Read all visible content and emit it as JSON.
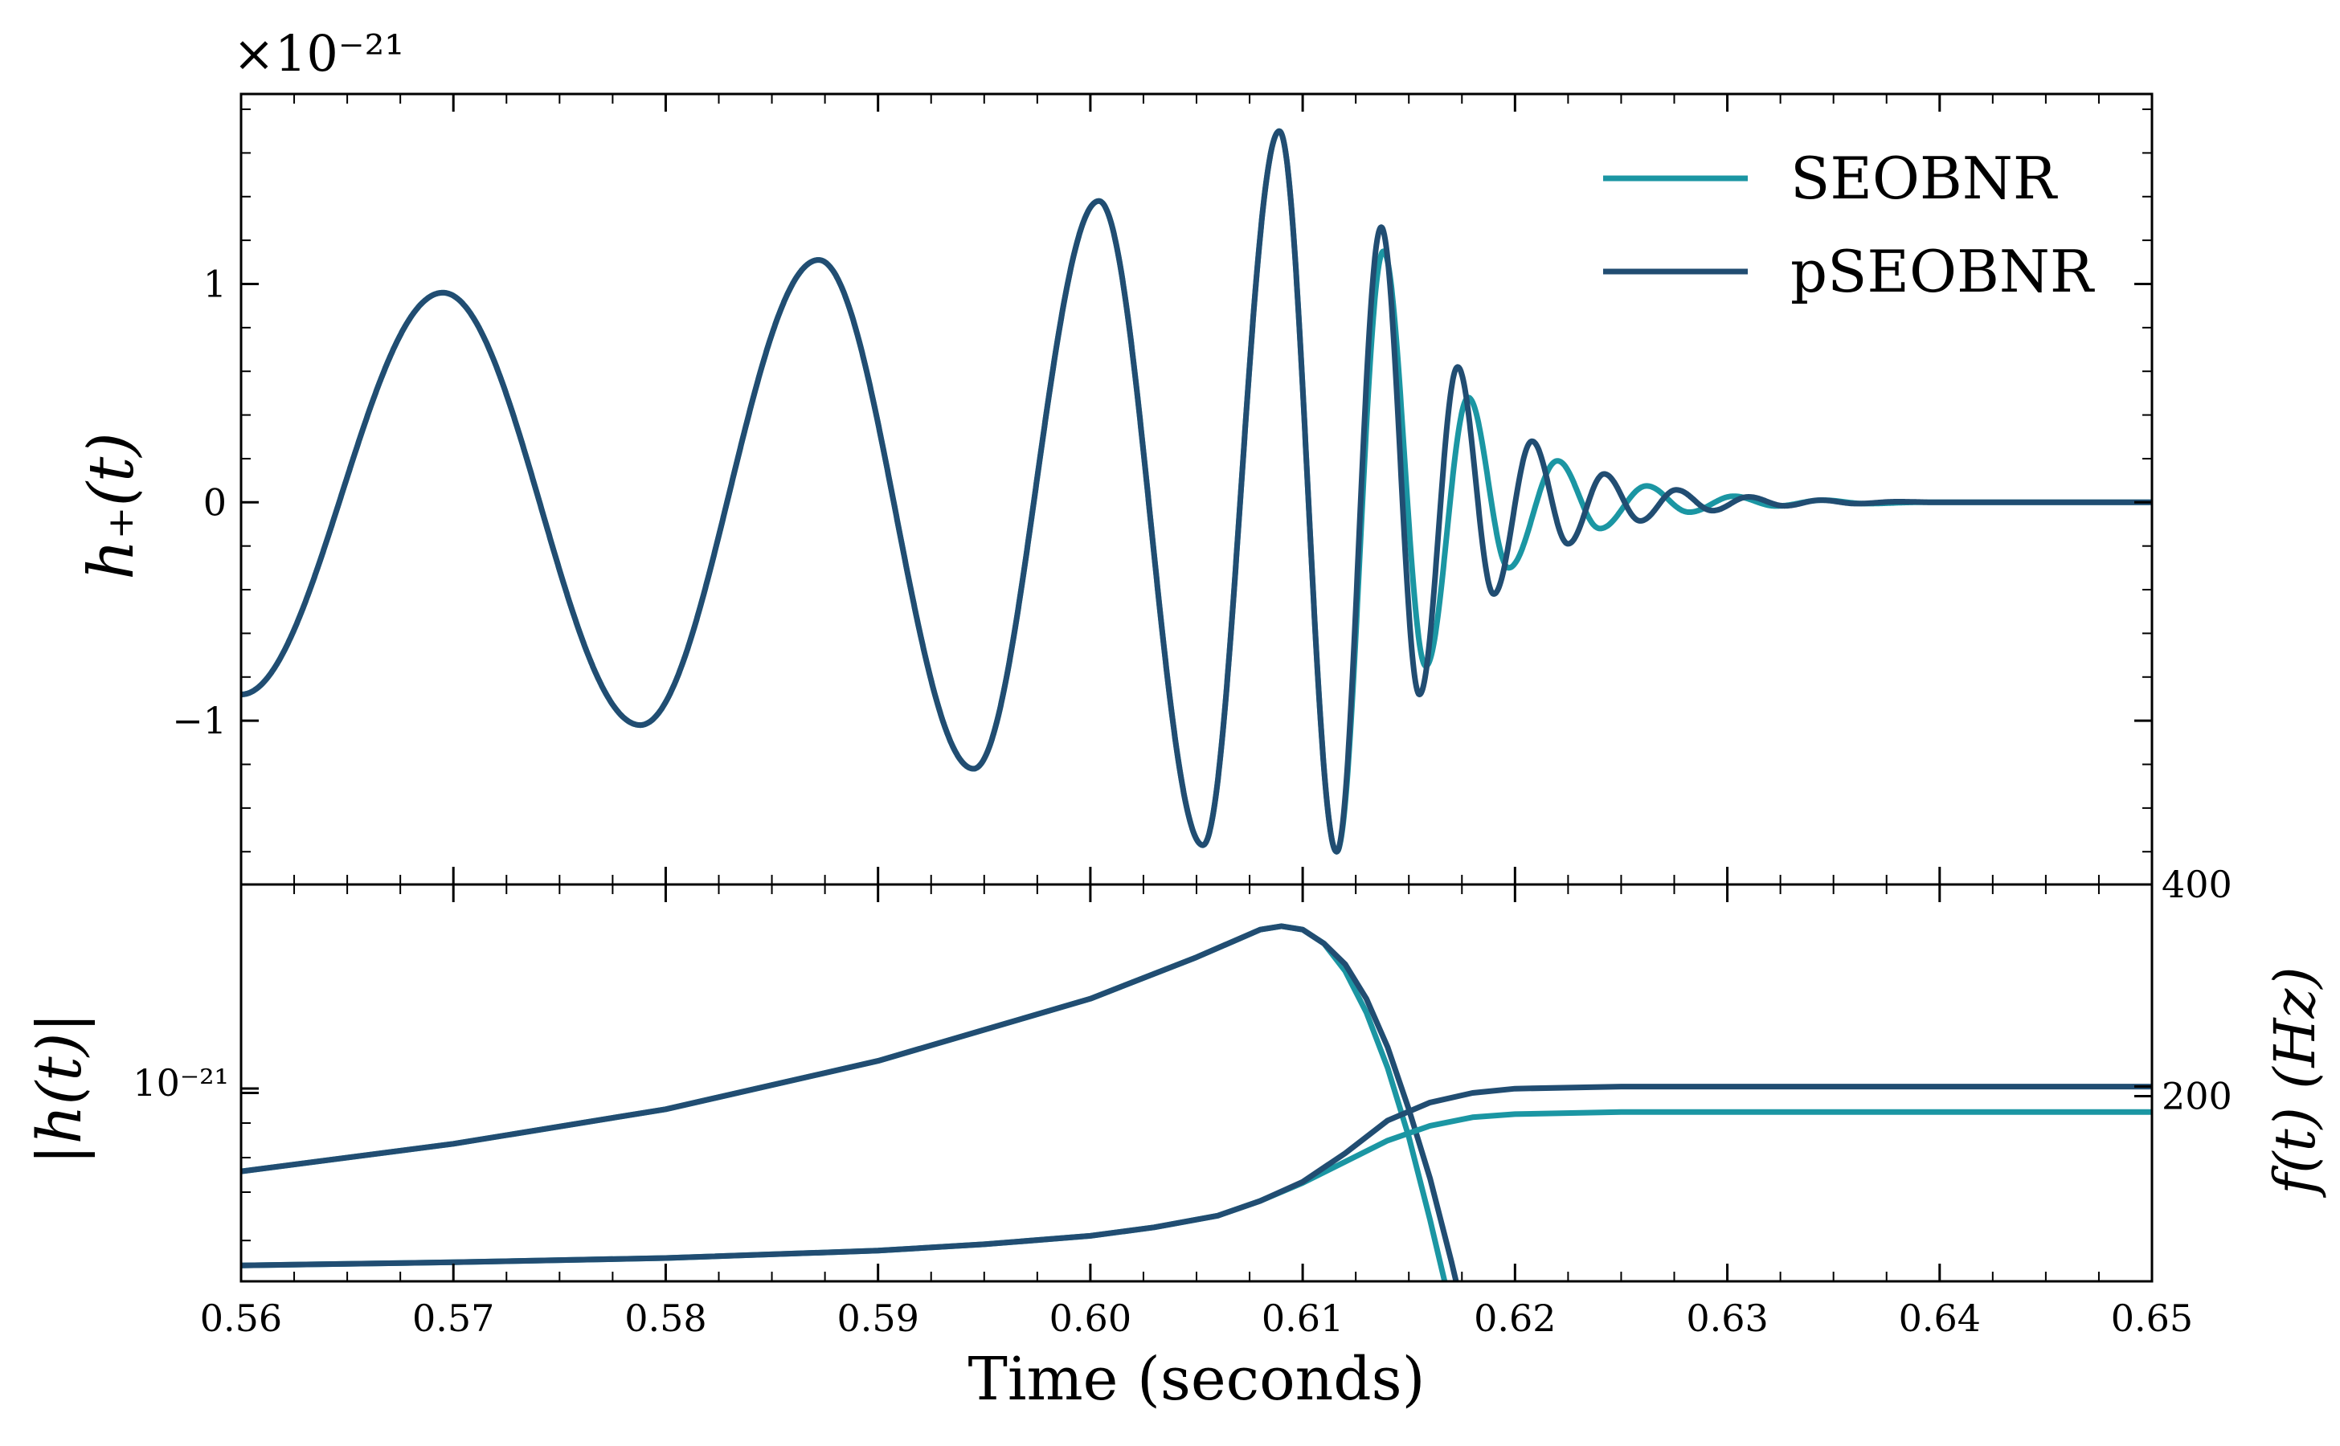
{
  "colors": {
    "seobnr": "#1b96a3",
    "pseobnr": "#214d72",
    "axes": "#000000",
    "background": "#ffffff"
  },
  "top": {
    "offset_text": "×10⁻²¹",
    "ylabel": "h₊(t)",
    "yticks": [
      {
        "value": 1,
        "label": "1"
      },
      {
        "value": 0,
        "label": "0"
      },
      {
        "value": -1,
        "label": "−1"
      }
    ],
    "ylim": [
      -1.75,
      1.87
    ],
    "legend": [
      "SEOBNR",
      "pSEOBNR"
    ],
    "legend_position": "upper-right"
  },
  "bottom": {
    "ylabel_left": "|h(t)|",
    "ylabel_right": "f(t) (Hz)",
    "ytick_left": "10⁻²¹",
    "yticks_right": [
      {
        "value": 400,
        "label": "400"
      },
      {
        "value": 200,
        "label": "200"
      }
    ],
    "xlabel": "Time (seconds)",
    "xticks": [
      "0.56",
      "0.57",
      "0.58",
      "0.59",
      "0.60",
      "0.61",
      "0.62",
      "0.63",
      "0.64",
      "0.65"
    ],
    "xlim": [
      0.56,
      0.65
    ],
    "freq_ylim": [
      25,
      400
    ],
    "amp_scale": "log"
  },
  "chart_data": [
    {
      "type": "line",
      "panel": "top",
      "ylabel": "h₊(t)",
      "y_multiplier": "×10⁻²¹",
      "xlim": [
        0.56,
        0.65
      ],
      "ylim": [
        -1.75,
        1.87
      ],
      "extrema_t": [
        0.56,
        0.5695,
        0.5788,
        0.5872,
        0.5945,
        0.6004,
        0.6053,
        0.6089,
        0.6116,
        0.6138,
        0.6158,
        0.6178,
        0.6197,
        0.622,
        0.624,
        0.6262,
        0.6282,
        0.6303,
        0.6323,
        0.6345,
        0.6365,
        0.639
      ],
      "series": [
        {
          "name": "SEOBNR",
          "extrema_v": [
            -0.88,
            0.96,
            -1.02,
            1.11,
            -1.22,
            1.38,
            -1.57,
            1.7,
            -1.6,
            1.15,
            -0.75,
            0.48,
            -0.3,
            0.19,
            -0.12,
            0.075,
            -0.045,
            0.028,
            -0.017,
            0.01,
            -0.006,
            0.0
          ]
        },
        {
          "name": "pSEOBNR",
          "extrema_t": [
            0.56,
            0.5695,
            0.5788,
            0.5872,
            0.5945,
            0.6004,
            0.6053,
            0.6089,
            0.6116,
            0.6137,
            0.6155,
            0.6173,
            0.619,
            0.6208,
            0.6225,
            0.6242,
            0.6259,
            0.6276,
            0.6293,
            0.631,
            0.6327,
            0.6344,
            0.6361,
            0.638,
            0.64
          ],
          "extrema_v": [
            -0.88,
            0.96,
            -1.02,
            1.11,
            -1.22,
            1.38,
            -1.57,
            1.7,
            -1.6,
            1.26,
            -0.88,
            0.62,
            -0.42,
            0.28,
            -0.19,
            0.13,
            -0.085,
            0.057,
            -0.038,
            0.025,
            -0.016,
            0.01,
            -0.006,
            0.003,
            0.0
          ]
        }
      ]
    },
    {
      "type": "line",
      "panel": "bottom",
      "ylabel": "|h(t)|",
      "yscale": "log",
      "xlim": [
        0.56,
        0.65
      ],
      "x": [
        0.56,
        0.57,
        0.58,
        0.59,
        0.6,
        0.605,
        0.608,
        0.609,
        0.61,
        0.611,
        0.612,
        0.613,
        0.614,
        0.615,
        0.616,
        0.617,
        0.618,
        0.619
      ],
      "series": [
        {
          "name": "SEOBNR",
          "log10_values": [
            -21.12,
            -21.08,
            -21.03,
            -20.96,
            -20.87,
            -20.81,
            -20.77,
            -20.765,
            -20.77,
            -20.79,
            -20.83,
            -20.89,
            -20.97,
            -21.07,
            -21.19,
            -21.32,
            -21.46,
            -21.6
          ]
        },
        {
          "name": "pSEOBNR",
          "log10_values": [
            -21.12,
            -21.08,
            -21.03,
            -20.96,
            -20.87,
            -20.81,
            -20.77,
            -20.765,
            -20.77,
            -20.79,
            -20.82,
            -20.87,
            -20.94,
            -21.03,
            -21.13,
            -21.25,
            -21.38,
            -21.51
          ]
        }
      ]
    },
    {
      "type": "line",
      "panel": "bottom",
      "ylabel": "f(t) (Hz)",
      "ylim": [
        25,
        400
      ],
      "x": [
        0.56,
        0.57,
        0.58,
        0.59,
        0.595,
        0.6,
        0.603,
        0.606,
        0.608,
        0.61,
        0.612,
        0.614,
        0.616,
        0.618,
        0.62,
        0.625,
        0.63,
        0.64,
        0.65
      ],
      "series": [
        {
          "name": "SEOBNR",
          "values": [
            40,
            43,
            47,
            54,
            60,
            68,
            76,
            87,
            101,
            118,
            138,
            158,
            172,
            180,
            183,
            185,
            185,
            185,
            185
          ]
        },
        {
          "name": "pSEOBNR",
          "values": [
            40,
            43,
            47,
            54,
            60,
            68,
            76,
            87,
            101,
            119,
            146,
            177,
            194,
            203,
            207,
            209,
            209,
            209,
            209
          ]
        }
      ]
    }
  ]
}
